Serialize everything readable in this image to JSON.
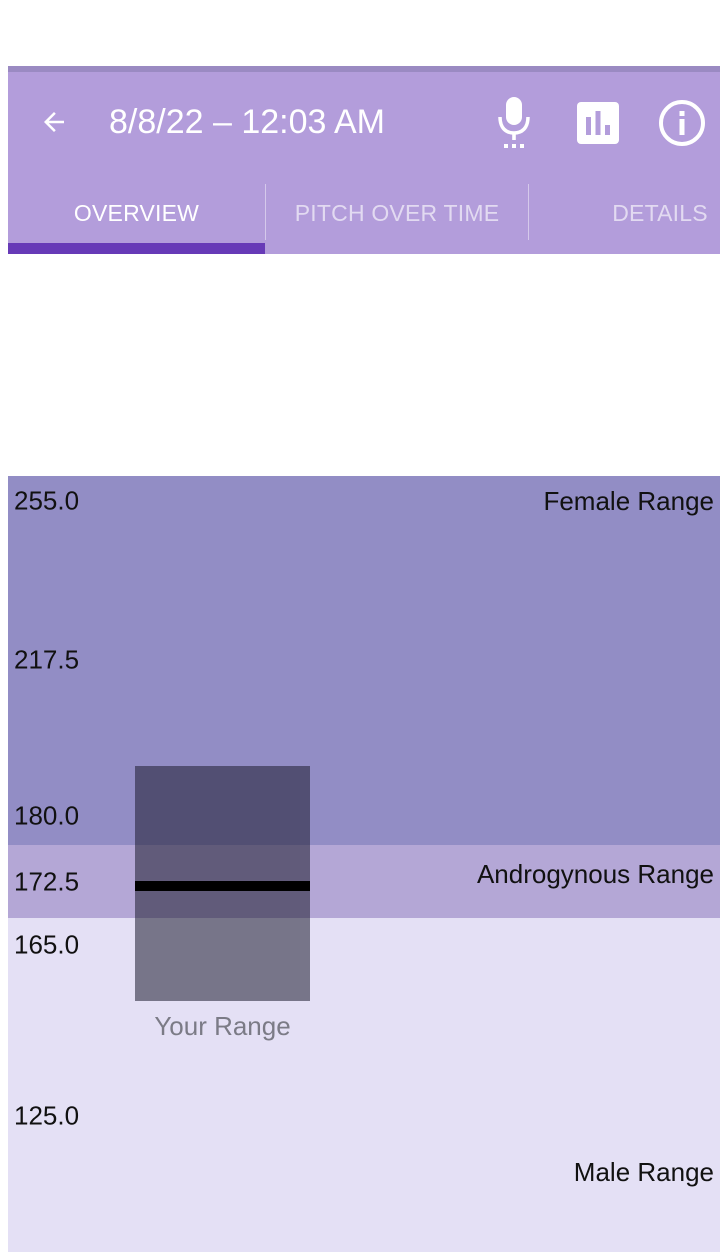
{
  "app": {
    "title": "8/8/22 – 12:03 AM",
    "icons": {
      "back": "back-arrow-icon",
      "record": "microphone-icon",
      "stats": "bar-chart-icon",
      "info": "info-icon"
    },
    "tabs": [
      {
        "label": "OVERVIEW",
        "active": true
      },
      {
        "label": "PITCH OVER TIME",
        "active": false
      },
      {
        "label": "DETAILS",
        "active": false
      }
    ]
  },
  "colors": {
    "app_bar": "#b39ddb",
    "tab_indicator": "#673ab7",
    "female_range": "#928dc5",
    "androgynous_range": "#b4a7d6",
    "male_range": "#e4e0f5"
  },
  "chart_data": {
    "type": "bar",
    "y_ticks": [
      "255.0",
      "217.5",
      "180.0",
      "172.5",
      "165.0",
      "125.0"
    ],
    "ranges": [
      {
        "label": "Female Range",
        "min": 180,
        "max": 255
      },
      {
        "label": "Androgynous Range",
        "min": 165,
        "max": 180
      },
      {
        "label": "Male Range",
        "min": 85,
        "max": 165
      }
    ],
    "your_range": {
      "label": "Your Range",
      "min": 152,
      "max": 192,
      "mean": 172
    }
  }
}
